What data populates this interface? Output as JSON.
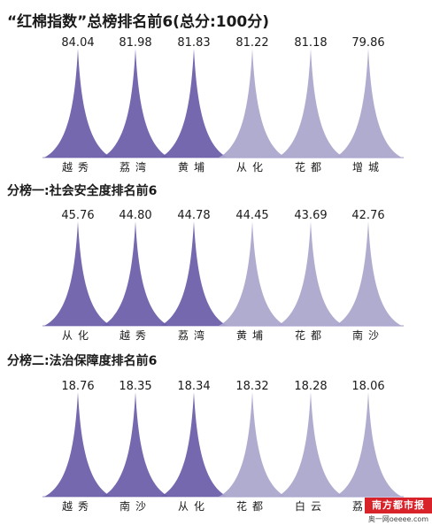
{
  "chart_data": [
    {
      "type": "bar",
      "title": "“红棉指数”总榜排名前6(总分:100分)",
      "categories": [
        "越秀",
        "荔湾",
        "黄埔",
        "从化",
        "花都",
        "增城"
      ],
      "values": [
        84.04,
        81.98,
        81.83,
        81.22,
        81.18,
        79.86
      ],
      "value_labels": [
        "84.04",
        "81.98",
        "81.83",
        "81.22",
        "81.18",
        "79.86"
      ],
      "colors": [
        "#6c5ca8",
        "#6c5ca8",
        "#6c5ca8",
        "#aaa6cc",
        "#aaa6cc",
        "#aaa6cc"
      ]
    },
    {
      "type": "bar",
      "title": "分榜一:社会安全度排名前6",
      "categories": [
        "从化",
        "越秀",
        "荔湾",
        "黄埔",
        "花都",
        "南沙"
      ],
      "values": [
        45.76,
        44.8,
        44.78,
        44.45,
        43.69,
        42.76
      ],
      "value_labels": [
        "45.76",
        "44.80",
        "44.78",
        "44.45",
        "43.69",
        "42.76"
      ],
      "colors": [
        "#6c5ca8",
        "#6c5ca8",
        "#6c5ca8",
        "#aaa6cc",
        "#aaa6cc",
        "#aaa6cc"
      ]
    },
    {
      "type": "bar",
      "title": "分榜二:法治保障度排名前6",
      "categories": [
        "越秀",
        "南沙",
        "从化",
        "花都",
        "白云",
        "荔湾"
      ],
      "values": [
        18.76,
        18.35,
        18.34,
        18.32,
        18.28,
        18.06
      ],
      "value_labels": [
        "18.76",
        "18.35",
        "18.34",
        "18.32",
        "18.28",
        "18.06"
      ],
      "colors": [
        "#6c5ca8",
        "#6c5ca8",
        "#6c5ca8",
        "#aaa6cc",
        "#aaa6cc",
        "#aaa6cc"
      ]
    }
  ],
  "watermark": {
    "logo": "南方都市报",
    "site": "奥一网oeeee.com"
  }
}
